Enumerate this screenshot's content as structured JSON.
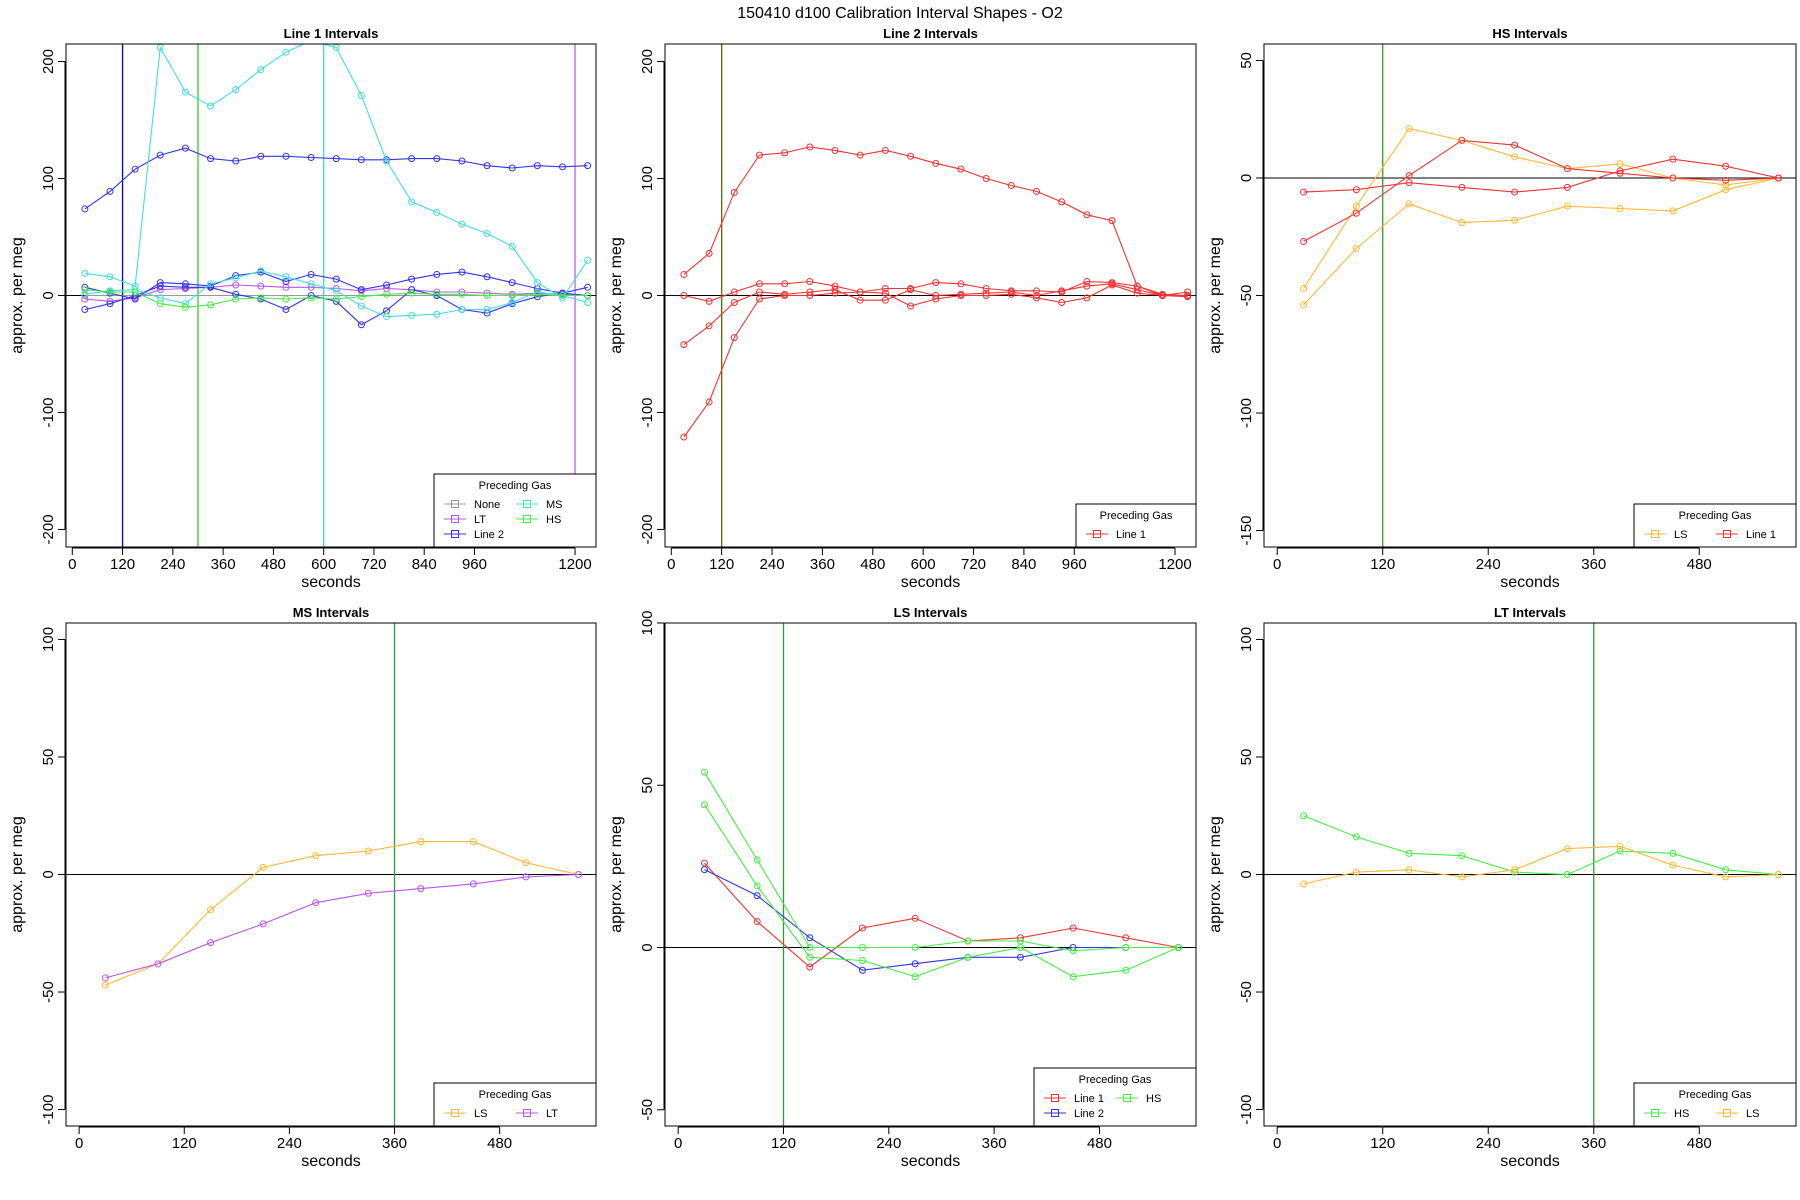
{
  "figure_title": "150410   d100   Calibration Interval Shapes - O2",
  "chart_data": [
    {
      "type": "line",
      "title": "Line 1 Intervals",
      "xlabel": "seconds",
      "ylabel": "approx. per meg",
      "xlim": [
        -15,
        1250
      ],
      "ylim": [
        -215,
        215
      ],
      "xticks": [
        0,
        120,
        240,
        360,
        480,
        600,
        720,
        840,
        960,
        1200
      ],
      "yticks": [
        -200,
        -100,
        0,
        100,
        200
      ],
      "hline": 0,
      "vlines": [
        {
          "x": 120,
          "color": "#0000CC"
        },
        {
          "x": 300,
          "color": "#33CC33"
        },
        {
          "x": 600,
          "color": "#33DDDD"
        },
        {
          "x": 1200,
          "color": "#BB66EE"
        }
      ],
      "legend": {
        "title": "Preceding Gas",
        "position": "bottom-right",
        "columns": 2
      },
      "series": [
        {
          "name": "None",
          "color": "#999999",
          "x": [
            30,
            1230
          ],
          "y": [
            0,
            0
          ]
        },
        {
          "name": "LT",
          "color": "#BB55EE",
          "x": [
            30,
            90,
            150,
            210,
            270,
            330,
            390,
            450,
            510,
            570,
            630,
            690,
            750,
            810,
            870,
            930,
            990,
            1050,
            1110,
            1170,
            1230
          ],
          "y": [
            -3,
            -5,
            -2,
            5,
            6,
            7,
            9,
            8,
            7,
            7,
            6,
            4,
            6,
            5,
            3,
            3,
            2,
            1,
            2,
            1,
            0
          ]
        },
        {
          "name": "Line 2",
          "color": "#3333EE",
          "x": [
            30,
            90,
            150,
            210,
            270,
            330,
            390,
            450,
            510,
            570,
            630,
            690,
            750,
            810,
            870,
            930,
            990,
            1050,
            1110,
            1170,
            1230
          ],
          "y": [
            74,
            89,
            108,
            120,
            126,
            117,
            115,
            119,
            119,
            118,
            117,
            116,
            116,
            117,
            117,
            115,
            111,
            109,
            111,
            110,
            111
          ]
        },
        {
          "name": "Line 2",
          "color": "#3333EE",
          "x": [
            30,
            90,
            150,
            210,
            270,
            330,
            390,
            450,
            510,
            570,
            630,
            690,
            750,
            810,
            870,
            930,
            990,
            1050,
            1110,
            1170,
            1230
          ],
          "y": [
            7,
            2,
            -3,
            11,
            10,
            8,
            17,
            20,
            12,
            18,
            14,
            5,
            9,
            14,
            18,
            20,
            16,
            11,
            6,
            2,
            0
          ]
        },
        {
          "name": "Line 2",
          "color": "#3333EE",
          "x": [
            30,
            90,
            150,
            210,
            270,
            330,
            390,
            450,
            510,
            570,
            630,
            690,
            750,
            810,
            870,
            930,
            990,
            1050,
            1110,
            1170,
            1230
          ],
          "y": [
            -12,
            -7,
            0,
            8,
            7,
            7,
            1,
            -3,
            -12,
            0,
            -5,
            -25,
            -13,
            5,
            0,
            -12,
            -15,
            -7,
            -1,
            2,
            7
          ]
        },
        {
          "name": "MS",
          "color": "#44DDDD",
          "x": [
            30,
            90,
            150,
            210,
            270,
            330,
            390,
            450,
            510,
            570,
            630,
            690,
            750,
            810,
            870,
            930,
            990,
            1050,
            1110,
            1170,
            1230
          ],
          "y": [
            19,
            16,
            8,
            212,
            174,
            162,
            176,
            193,
            208,
            218,
            212,
            171,
            115,
            80,
            71,
            61,
            53,
            42,
            11,
            -2,
            30
          ]
        },
        {
          "name": "MS",
          "color": "#44DDDD",
          "x": [
            30,
            90,
            150,
            210,
            270,
            330,
            390,
            450,
            510,
            570,
            630,
            690,
            750,
            810,
            870,
            930,
            990,
            1050,
            1110,
            1170,
            1230
          ],
          "y": [
            1,
            4,
            5,
            -2,
            -7,
            10,
            15,
            21,
            16,
            10,
            4,
            -9,
            -18,
            -17,
            -16,
            -12,
            -12,
            -6,
            3,
            0,
            -6
          ]
        },
        {
          "name": "HS",
          "color": "#44EE44",
          "x": [
            30,
            90,
            150,
            210,
            270,
            330,
            390,
            450,
            510,
            570,
            630,
            690,
            750,
            810,
            870,
            930,
            990,
            1050,
            1110,
            1170,
            1230
          ],
          "y": [
            5,
            3,
            3,
            -7,
            -10,
            -8,
            -3,
            -2,
            -3,
            -2,
            -3,
            -1,
            1,
            2,
            1,
            1,
            0,
            0,
            1,
            0,
            0
          ]
        }
      ]
    },
    {
      "type": "line",
      "title": "Line 2 Intervals",
      "xlabel": "seconds",
      "ylabel": "approx. per meg",
      "xlim": [
        -15,
        1250
      ],
      "ylim": [
        -215,
        215
      ],
      "xticks": [
        0,
        120,
        240,
        360,
        480,
        600,
        720,
        840,
        960,
        1200
      ],
      "yticks": [
        -200,
        -100,
        0,
        100,
        200
      ],
      "hline": 0,
      "vlines": [
        {
          "x": 120,
          "color": "#666600"
        }
      ],
      "legend": {
        "title": "Preceding Gas",
        "position": "bottom-right",
        "columns": 1
      },
      "series": [
        {
          "name": "Line 1",
          "color": "#EE3333",
          "x": [
            30,
            90,
            150,
            210,
            270,
            330,
            390,
            450,
            510,
            570,
            630,
            690,
            750,
            810,
            870,
            930,
            990,
            1050,
            1110,
            1170,
            1230
          ],
          "y": [
            18,
            36,
            88,
            120,
            122,
            127,
            124,
            120,
            124,
            119,
            113,
            108,
            100,
            94,
            89,
            80,
            69,
            64,
            8,
            1,
            0
          ]
        },
        {
          "name": "Line 1",
          "color": "#EE3333",
          "x": [
            30,
            90,
            150,
            210,
            270,
            330,
            390,
            450,
            510,
            570,
            630,
            690,
            750,
            810,
            870,
            930,
            990,
            1050,
            1110,
            1170,
            1230
          ],
          "y": [
            0,
            -5,
            3,
            10,
            10,
            12,
            8,
            3,
            6,
            6,
            11,
            10,
            6,
            4,
            4,
            3,
            12,
            11,
            8,
            0,
            3
          ]
        },
        {
          "name": "Line 1",
          "color": "#EE3333",
          "x": [
            30,
            90,
            150,
            210,
            270,
            330,
            390,
            450,
            510,
            570,
            630,
            690,
            750,
            810,
            870,
            930,
            990,
            1050,
            1110,
            1170,
            1230
          ],
          "y": [
            -42,
            -26,
            -6,
            3,
            1,
            3,
            5,
            -4,
            -4,
            5,
            0,
            1,
            2,
            3,
            0,
            4,
            8,
            10,
            5,
            0,
            0
          ]
        },
        {
          "name": "Line 1",
          "color": "#EE3333",
          "x": [
            30,
            90,
            150,
            210,
            270,
            330,
            390,
            450,
            510,
            570,
            630,
            690,
            750,
            810,
            870,
            930,
            990,
            1050,
            1110,
            1170,
            1230
          ],
          "y": [
            -121,
            -91,
            -36,
            -3,
            0,
            0,
            2,
            3,
            2,
            -9,
            -3,
            0,
            0,
            1,
            -2,
            -6,
            -2,
            9,
            2,
            0,
            -1
          ]
        }
      ]
    },
    {
      "type": "line",
      "title": "HS Intervals",
      "xlabel": "seconds",
      "ylabel": "approx. per meg",
      "xlim": [
        -15,
        590
      ],
      "ylim": [
        -157,
        57
      ],
      "xticks": [
        0,
        120,
        240,
        360,
        480
      ],
      "yticks": [
        -150,
        -100,
        -50,
        0,
        50
      ],
      "hline": 0,
      "vlines": [
        {
          "x": 120,
          "color": "#339933"
        }
      ],
      "legend": {
        "title": "Preceding Gas",
        "position": "bottom-right",
        "columns": 2
      },
      "series": [
        {
          "name": "LS",
          "color": "#FFB833",
          "x": [
            30,
            90,
            150,
            210,
            270,
            330,
            390,
            450,
            510,
            570
          ],
          "y": [
            -47,
            -12,
            21,
            16,
            9,
            4,
            6,
            0,
            -3,
            0
          ]
        },
        {
          "name": "LS",
          "color": "#FFB833",
          "x": [
            30,
            90,
            150,
            210,
            270,
            330,
            390,
            450,
            510,
            570
          ],
          "y": [
            -54,
            -30,
            -11,
            -19,
            -18,
            -12,
            -13,
            -14,
            -5,
            0
          ]
        },
        {
          "name": "Line 1",
          "color": "#EE3333",
          "x": [
            30,
            90,
            150,
            210,
            270,
            330,
            390,
            450,
            510,
            570
          ],
          "y": [
            -27,
            -15,
            1,
            16,
            14,
            4,
            2,
            0,
            -1,
            0
          ]
        },
        {
          "name": "Line 1",
          "color": "#EE3333",
          "x": [
            30,
            90,
            150,
            210,
            270,
            330,
            390,
            450,
            510,
            570
          ],
          "y": [
            -6,
            -5,
            -2,
            -4,
            -6,
            -4,
            3,
            8,
            5,
            0
          ]
        }
      ]
    },
    {
      "type": "line",
      "title": "MS Intervals",
      "xlabel": "seconds",
      "ylabel": "approx. per meg",
      "xlim": [
        -15,
        590
      ],
      "ylim": [
        -107,
        107
      ],
      "xticks": [
        0,
        120,
        240,
        360,
        480
      ],
      "yticks": [
        -100,
        -50,
        0,
        50,
        100
      ],
      "hline": 0,
      "vlines": [
        {
          "x": 360,
          "color": "#339933"
        }
      ],
      "legend": {
        "title": "Preceding Gas",
        "position": "bottom-right",
        "columns": 2
      },
      "series": [
        {
          "name": "LS",
          "color": "#FFB833",
          "x": [
            30,
            90,
            150,
            210,
            270,
            330,
            390,
            450,
            510,
            570
          ],
          "y": [
            -47,
            -38,
            -15,
            3,
            8,
            10,
            14,
            14,
            5,
            0
          ]
        },
        {
          "name": "LT",
          "color": "#BB55EE",
          "x": [
            30,
            90,
            150,
            210,
            270,
            330,
            390,
            450,
            510,
            570
          ],
          "y": [
            -44,
            -38,
            -29,
            -21,
            -12,
            -8,
            -6,
            -4,
            -1,
            0
          ]
        }
      ]
    },
    {
      "type": "line",
      "title": "LS Intervals",
      "xlabel": "seconds",
      "ylabel": "approx. per meg",
      "xlim": [
        -15,
        590
      ],
      "ylim": [
        -55,
        100
      ],
      "xticks": [
        0,
        120,
        240,
        360,
        480
      ],
      "yticks": [
        -50,
        0,
        50,
        100
      ],
      "hline": 0,
      "vlines": [
        {
          "x": 120,
          "color": "#339933"
        }
      ],
      "legend": {
        "title": "Preceding Gas",
        "position": "bottom-right",
        "columns": 2
      },
      "series": [
        {
          "name": "Line 1",
          "color": "#EE3333",
          "x": [
            30,
            90,
            150,
            210,
            270,
            330,
            390,
            450,
            510,
            570
          ],
          "y": [
            26,
            8,
            -6,
            6,
            9,
            2,
            3,
            6,
            3,
            0
          ]
        },
        {
          "name": "Line 2",
          "color": "#3333EE",
          "x": [
            30,
            90,
            150,
            210,
            270,
            330,
            390,
            450,
            510,
            570
          ],
          "y": [
            24,
            16,
            3,
            -7,
            -5,
            -3,
            -3,
            0,
            0,
            0
          ]
        },
        {
          "name": "HS",
          "color": "#44EE44",
          "x": [
            30,
            90,
            150,
            210,
            270,
            330,
            390,
            450,
            510,
            570
          ],
          "y": [
            54,
            27,
            0,
            0,
            0,
            2,
            2,
            -1,
            0,
            0
          ]
        },
        {
          "name": "HS",
          "color": "#44EE44",
          "x": [
            30,
            90,
            150,
            210,
            270,
            330,
            390,
            450,
            510,
            570
          ],
          "y": [
            44,
            19,
            -3,
            -4,
            -9,
            -3,
            0,
            -9,
            -7,
            0
          ]
        }
      ]
    },
    {
      "type": "line",
      "title": "LT Intervals",
      "xlabel": "seconds",
      "ylabel": "approx. per meg",
      "xlim": [
        -15,
        590
      ],
      "ylim": [
        -107,
        107
      ],
      "xticks": [
        0,
        120,
        240,
        360,
        480
      ],
      "yticks": [
        -100,
        -50,
        0,
        50,
        100
      ],
      "hline": 0,
      "vlines": [
        {
          "x": 360,
          "color": "#339933"
        }
      ],
      "legend": {
        "title": "Preceding Gas",
        "position": "bottom-right",
        "columns": 2
      },
      "series": [
        {
          "name": "HS",
          "color": "#44EE44",
          "x": [
            30,
            90,
            150,
            210,
            270,
            330,
            390,
            450,
            510,
            570
          ],
          "y": [
            25,
            16,
            9,
            8,
            1,
            0,
            10,
            9,
            2,
            0
          ]
        },
        {
          "name": "LS",
          "color": "#FFB833",
          "x": [
            30,
            90,
            150,
            210,
            270,
            330,
            390,
            450,
            510,
            570
          ],
          "y": [
            -4,
            1,
            2,
            -1,
            2,
            11,
            12,
            4,
            -1,
            0
          ]
        }
      ]
    }
  ]
}
